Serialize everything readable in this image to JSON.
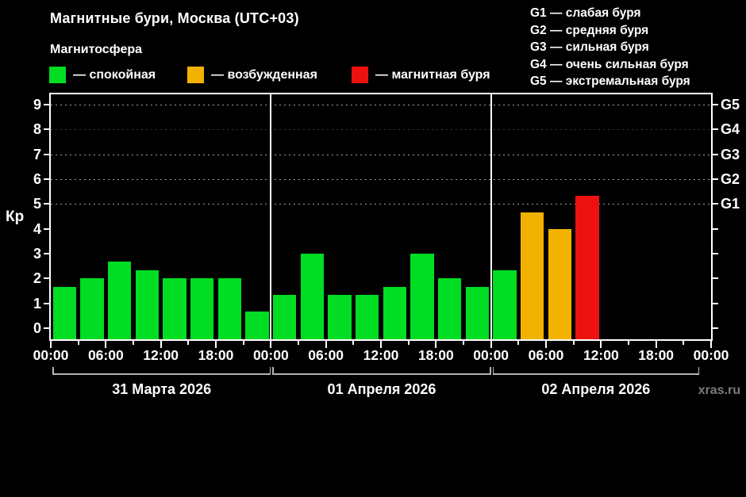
{
  "header": {
    "title": "Магнитные бури, Москва (UTC+03)",
    "subtitle": "Магнитосфера"
  },
  "legend": {
    "items": [
      {
        "key": "quiet",
        "label": "— спокойная",
        "color": "#00dd22"
      },
      {
        "key": "excited",
        "label": "— возбужденная",
        "color": "#f2b200"
      },
      {
        "key": "storm",
        "label": "— магнитная буря",
        "color": "#ee1111"
      }
    ]
  },
  "storm_scale_legend": {
    "items": [
      "G1 — слабая буря",
      "G2 — средняя буря",
      "G3 — сильная буря",
      "G4 — очень сильная буря",
      "G5 — экстремальная буря"
    ]
  },
  "watermark": "xras.ru",
  "chart_data": {
    "type": "bar",
    "title": "Магнитные бури, Москва (UTC+03)",
    "ylabel": "Кр",
    "ylim": [
      -0.45,
      9.42
    ],
    "y_ticks": [
      0,
      1,
      2,
      3,
      4,
      5,
      6,
      7,
      8,
      9
    ],
    "grid_dashed_levels": [
      5,
      6,
      7,
      8,
      9
    ],
    "right_axis_labels": [
      {
        "kp": 5,
        "label": "G1"
      },
      {
        "kp": 6,
        "label": "G2"
      },
      {
        "kp": 7,
        "label": "G3"
      },
      {
        "kp": 8,
        "label": "G4"
      },
      {
        "kp": 9,
        "label": "G5"
      }
    ],
    "x_tick_labels": [
      "00:00",
      "06:00",
      "12:00",
      "18:00",
      "00:00",
      "06:00",
      "12:00",
      "18:00",
      "00:00",
      "06:00",
      "12:00",
      "18:00",
      "00:00"
    ],
    "hours_per_bar": 3,
    "status_colors": {
      "quiet": "#00dd22",
      "excited": "#f2b200",
      "storm": "#ee1111"
    },
    "status_thresholds": {
      "excited_min_kp": 4,
      "storm_min_kp": 5
    },
    "days": [
      {
        "date": "31 Марта 2026",
        "values": [
          1.67,
          2.0,
          2.67,
          2.33,
          2.0,
          2.0,
          2.0,
          0.67
        ]
      },
      {
        "date": "01 Апреля 2026",
        "values": [
          1.33,
          3.0,
          1.33,
          1.33,
          1.67,
          3.0,
          2.0,
          1.67
        ]
      },
      {
        "date": "02 Апреля 2026",
        "values": [
          2.33,
          4.67,
          4.0,
          5.33,
          null,
          null,
          null,
          null
        ]
      }
    ]
  }
}
